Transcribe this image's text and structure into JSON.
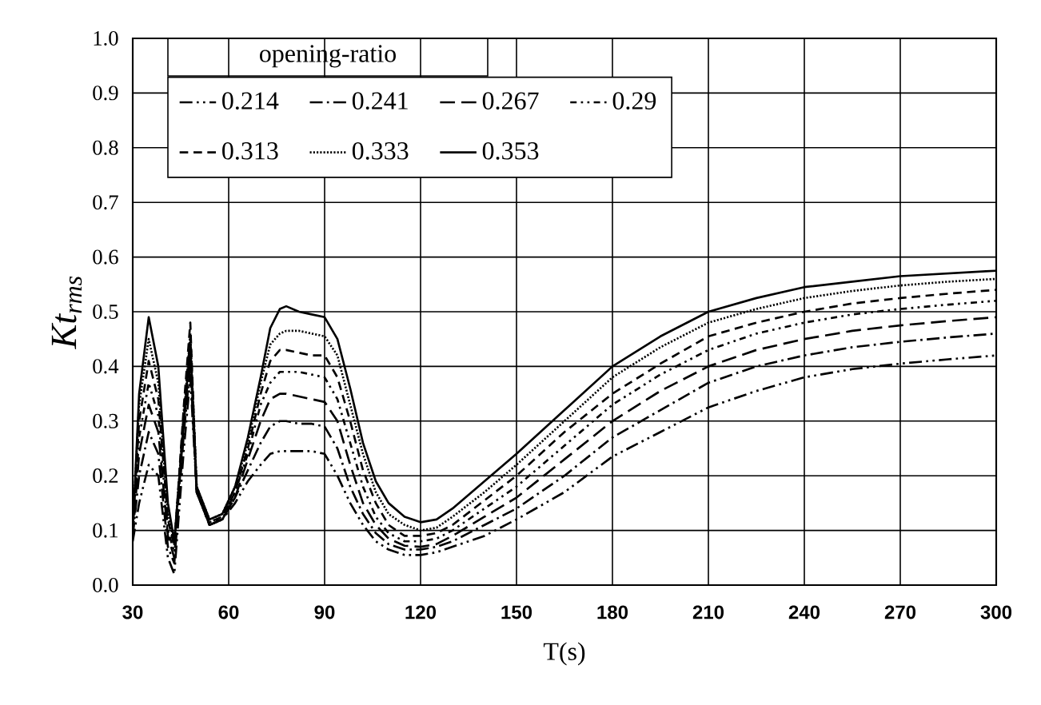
{
  "chart_data": {
    "type": "line",
    "xlabel": "T(s)",
    "ylabel": "Kt$_{rms}$",
    "legend_title": "opening-ratio",
    "legend": "top left",
    "grid": true,
    "xlim": [
      30,
      300
    ],
    "xticks": [
      30,
      60,
      90,
      120,
      150,
      180,
      210,
      240,
      270,
      300
    ],
    "ylim": [
      0,
      1
    ],
    "yticks": [
      {
        "value": 0,
        "label": "0.0"
      },
      0.1,
      0.2,
      0.3,
      0.4,
      0.5,
      0.6,
      0.7,
      0.8,
      0.9,
      {
        "value": 1,
        "label": "1.0"
      }
    ],
    "x": [
      30,
      32,
      35,
      38,
      41,
      43,
      46,
      48,
      50,
      54,
      58,
      62,
      66,
      70,
      73,
      76,
      78,
      82,
      86,
      90,
      94,
      98,
      102,
      106,
      110,
      115,
      120,
      125,
      130,
      140,
      150,
      165,
      180,
      195,
      210,
      225,
      240,
      255,
      270,
      285,
      300
    ],
    "series": [
      {
        "name": "0.214",
        "color": "#000000",
        "line_style": "dashdotdotted",
        "values": [
          0.08,
          0.15,
          0.22,
          0.2,
          0.05,
          0.02,
          0.25,
          0.38,
          0.17,
          0.11,
          0.12,
          0.15,
          0.19,
          0.22,
          0.24,
          0.245,
          0.245,
          0.245,
          0.245,
          0.24,
          0.2,
          0.15,
          0.11,
          0.08,
          0.065,
          0.055,
          0.055,
          0.06,
          0.07,
          0.09,
          0.12,
          0.17,
          0.235,
          0.28,
          0.325,
          0.355,
          0.38,
          0.395,
          0.405,
          0.413,
          0.42
        ]
      },
      {
        "name": "0.241",
        "color": "#000000",
        "line_style": "dashdotted",
        "values": [
          0.09,
          0.2,
          0.28,
          0.24,
          0.07,
          0.04,
          0.28,
          0.4,
          0.17,
          0.11,
          0.12,
          0.16,
          0.21,
          0.26,
          0.29,
          0.3,
          0.3,
          0.295,
          0.295,
          0.29,
          0.25,
          0.18,
          0.13,
          0.095,
          0.075,
          0.065,
          0.065,
          0.07,
          0.08,
          0.11,
          0.14,
          0.2,
          0.27,
          0.32,
          0.37,
          0.4,
          0.42,
          0.435,
          0.445,
          0.453,
          0.46
        ]
      },
      {
        "name": "0.267",
        "color": "#000000",
        "line_style": "longdashed",
        "values": [
          0.09,
          0.24,
          0.33,
          0.28,
          0.09,
          0.05,
          0.3,
          0.42,
          0.17,
          0.11,
          0.12,
          0.16,
          0.23,
          0.3,
          0.34,
          0.35,
          0.35,
          0.345,
          0.34,
          0.335,
          0.3,
          0.22,
          0.15,
          0.11,
          0.085,
          0.072,
          0.07,
          0.075,
          0.09,
          0.125,
          0.16,
          0.23,
          0.3,
          0.355,
          0.4,
          0.43,
          0.45,
          0.465,
          0.475,
          0.483,
          0.49
        ]
      },
      {
        "name": "0.29",
        "color": "#000000",
        "line_style": "shortdashdotdotted",
        "values": [
          0.1,
          0.27,
          0.37,
          0.31,
          0.1,
          0.06,
          0.32,
          0.45,
          0.17,
          0.115,
          0.12,
          0.17,
          0.24,
          0.33,
          0.37,
          0.39,
          0.39,
          0.39,
          0.385,
          0.38,
          0.34,
          0.26,
          0.18,
          0.125,
          0.095,
          0.08,
          0.08,
          0.085,
          0.1,
          0.14,
          0.18,
          0.255,
          0.33,
          0.385,
          0.43,
          0.46,
          0.48,
          0.495,
          0.505,
          0.513,
          0.52
        ]
      },
      {
        "name": "0.313",
        "color": "#000000",
        "line_style": "dashed",
        "values": [
          0.1,
          0.3,
          0.41,
          0.34,
          0.12,
          0.07,
          0.33,
          0.48,
          0.17,
          0.115,
          0.125,
          0.17,
          0.25,
          0.35,
          0.41,
          0.43,
          0.43,
          0.425,
          0.42,
          0.42,
          0.38,
          0.3,
          0.21,
          0.15,
          0.11,
          0.09,
          0.09,
          0.095,
          0.11,
          0.155,
          0.2,
          0.28,
          0.35,
          0.405,
          0.455,
          0.48,
          0.5,
          0.515,
          0.525,
          0.533,
          0.54
        ]
      },
      {
        "name": "0.333",
        "color": "#000000",
        "line_style": "dotted",
        "values": [
          0.1,
          0.33,
          0.45,
          0.37,
          0.13,
          0.075,
          0.31,
          0.46,
          0.18,
          0.12,
          0.13,
          0.18,
          0.26,
          0.37,
          0.44,
          0.46,
          0.465,
          0.465,
          0.46,
          0.455,
          0.42,
          0.33,
          0.24,
          0.17,
          0.13,
          0.11,
          0.1,
          0.105,
          0.125,
          0.17,
          0.22,
          0.3,
          0.38,
          0.435,
          0.48,
          0.505,
          0.525,
          0.538,
          0.548,
          0.555,
          0.56
        ]
      },
      {
        "name": "0.353",
        "color": "#000000",
        "line_style": "solid",
        "values": [
          0.1,
          0.35,
          0.49,
          0.4,
          0.15,
          0.08,
          0.3,
          0.44,
          0.18,
          0.12,
          0.13,
          0.18,
          0.27,
          0.38,
          0.47,
          0.505,
          0.51,
          0.5,
          0.495,
          0.49,
          0.45,
          0.36,
          0.26,
          0.19,
          0.15,
          0.125,
          0.115,
          0.12,
          0.14,
          0.19,
          0.24,
          0.32,
          0.4,
          0.455,
          0.5,
          0.525,
          0.545,
          0.555,
          0.565,
          0.57,
          0.575
        ]
      }
    ]
  }
}
